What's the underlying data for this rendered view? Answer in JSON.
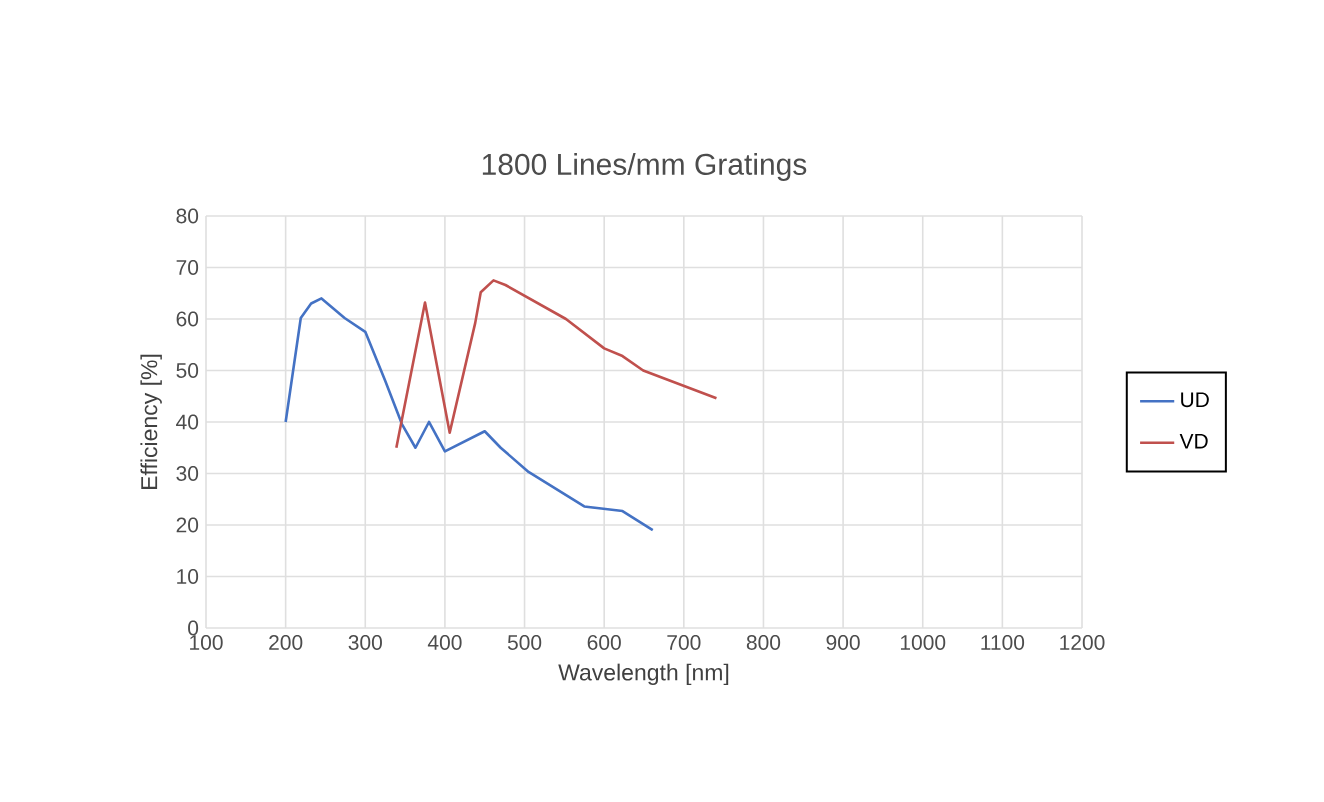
{
  "chart_data": {
    "type": "line",
    "title": "1800 Lines/mm Gratings",
    "xlabel": "Wavelength [nm]",
    "ylabel": "Efficiency [%]",
    "xlim": [
      100,
      1200
    ],
    "xticks": [
      100,
      200,
      300,
      400,
      500,
      600,
      700,
      800,
      900,
      1000,
      1100,
      1200
    ],
    "ylim": [
      0,
      80
    ],
    "yticks": [
      0,
      10,
      20,
      30,
      40,
      50,
      60,
      70,
      80
    ],
    "grid": true,
    "legend": "right",
    "marker": "none",
    "line_style": "solid",
    "series": [
      {
        "name": "UD",
        "color": "#4472c4",
        "x": [
          200,
          219,
          232,
          245,
          274,
          300,
          325,
          346,
          363,
          380,
          400,
          450,
          470,
          505,
          575,
          623,
          661
        ],
        "values": [
          40,
          60.2,
          63,
          64,
          60.2,
          57.5,
          48,
          39.6,
          35,
          40,
          34.3,
          38.2,
          35,
          30.3,
          23.6,
          22.7,
          19
        ]
      },
      {
        "name": "VD",
        "color": "#c0504d",
        "x": [
          339,
          375,
          406,
          438,
          445,
          461,
          476,
          552,
          600,
          623,
          649,
          741
        ],
        "values": [
          35,
          63.2,
          37.9,
          59.2,
          65.2,
          67.5,
          66.6,
          60,
          54.3,
          52.8,
          50,
          44.6
        ]
      }
    ]
  }
}
